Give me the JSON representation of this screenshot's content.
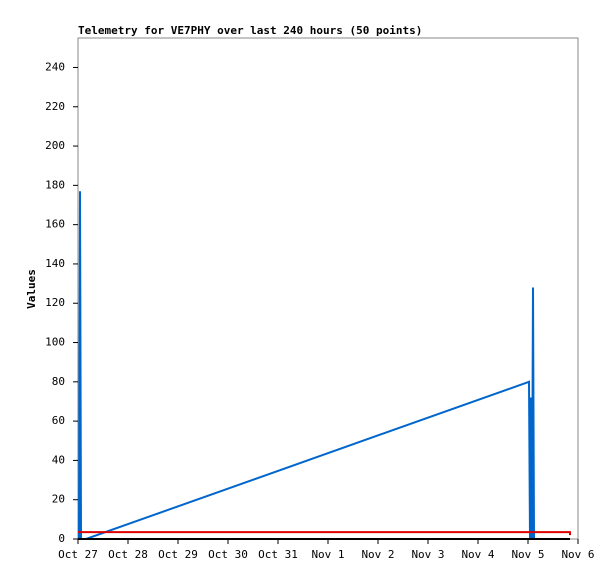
{
  "chart_data": {
    "type": "line",
    "title": "Telemetry for VE7PHY over last 240 hours (50 points)",
    "y_label": "Values",
    "xlim": [
      0,
      10
    ],
    "xticks": [
      {
        "value": 0,
        "label": "Oct 27"
      },
      {
        "value": 1,
        "label": "Oct 28"
      },
      {
        "value": 2,
        "label": "Oct 29"
      },
      {
        "value": 3,
        "label": "Oct 30"
      },
      {
        "value": 4,
        "label": "Oct 31"
      },
      {
        "value": 5,
        "label": "Nov 1"
      },
      {
        "value": 6,
        "label": "Nov 2"
      },
      {
        "value": 7,
        "label": "Nov 3"
      },
      {
        "value": 8,
        "label": "Nov 4"
      },
      {
        "value": 9,
        "label": "Nov 5"
      },
      {
        "value": 10,
        "label": "Nov 6"
      }
    ],
    "ylim": [
      0,
      255
    ],
    "yticks": [
      0,
      20,
      40,
      60,
      80,
      100,
      120,
      140,
      160,
      180,
      200,
      220,
      240
    ],
    "series": [
      {
        "color": "#0066cc",
        "x": [
          0.02,
          0.04,
          0.06,
          0.16,
          9.02,
          9.04,
          9.06,
          9.08,
          9.1,
          9.12
        ],
        "values": [
          0,
          177,
          0,
          0,
          80,
          0,
          72,
          0,
          128,
          0
        ]
      },
      {
        "color": "#dd0000",
        "x": [
          0,
          9.84,
          9.84
        ],
        "values": [
          3.5,
          3.5,
          2
        ]
      },
      {
        "color": "#000000",
        "x": [
          0,
          9.84
        ],
        "values": [
          0,
          0
        ]
      }
    ]
  }
}
